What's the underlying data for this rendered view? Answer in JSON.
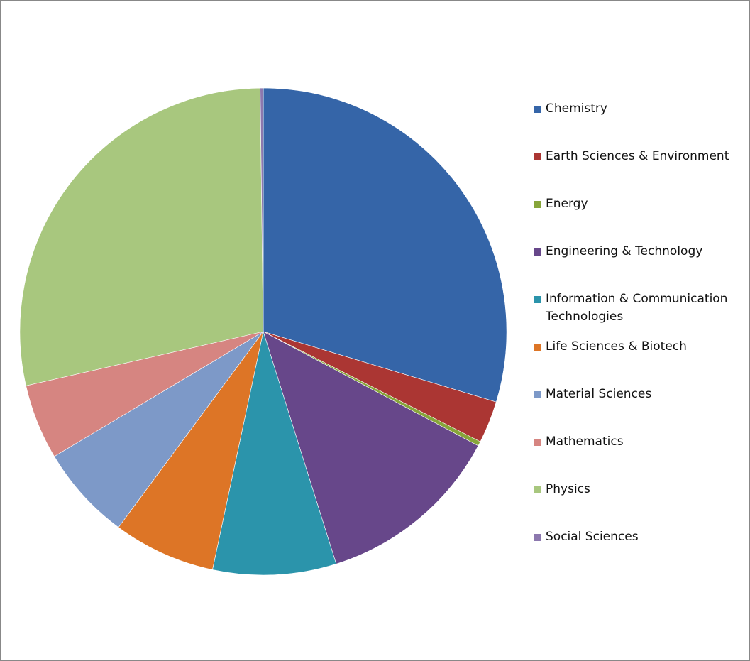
{
  "chart_data": {
    "type": "pie",
    "categories": [
      "Chemistry",
      "Earth Sciences & Environment",
      "Energy",
      "Engineering & Technology",
      "Information & Communication Technologies",
      "Life Sciences & Biotech",
      "Material Sciences",
      "Mathematics",
      "Physics",
      "Social Sciences"
    ],
    "values": [
      29.7,
      2.8,
      0.3,
      12.4,
      8.2,
      6.8,
      6.3,
      5.0,
      28.4,
      0.2
    ],
    "colors": [
      "#3565a8",
      "#ab3633",
      "#87a53a",
      "#67478a",
      "#2b94ab",
      "#dd7526",
      "#7d99c8",
      "#d68581",
      "#a8c77e",
      "#8c78ae"
    ],
    "legend": "right"
  }
}
